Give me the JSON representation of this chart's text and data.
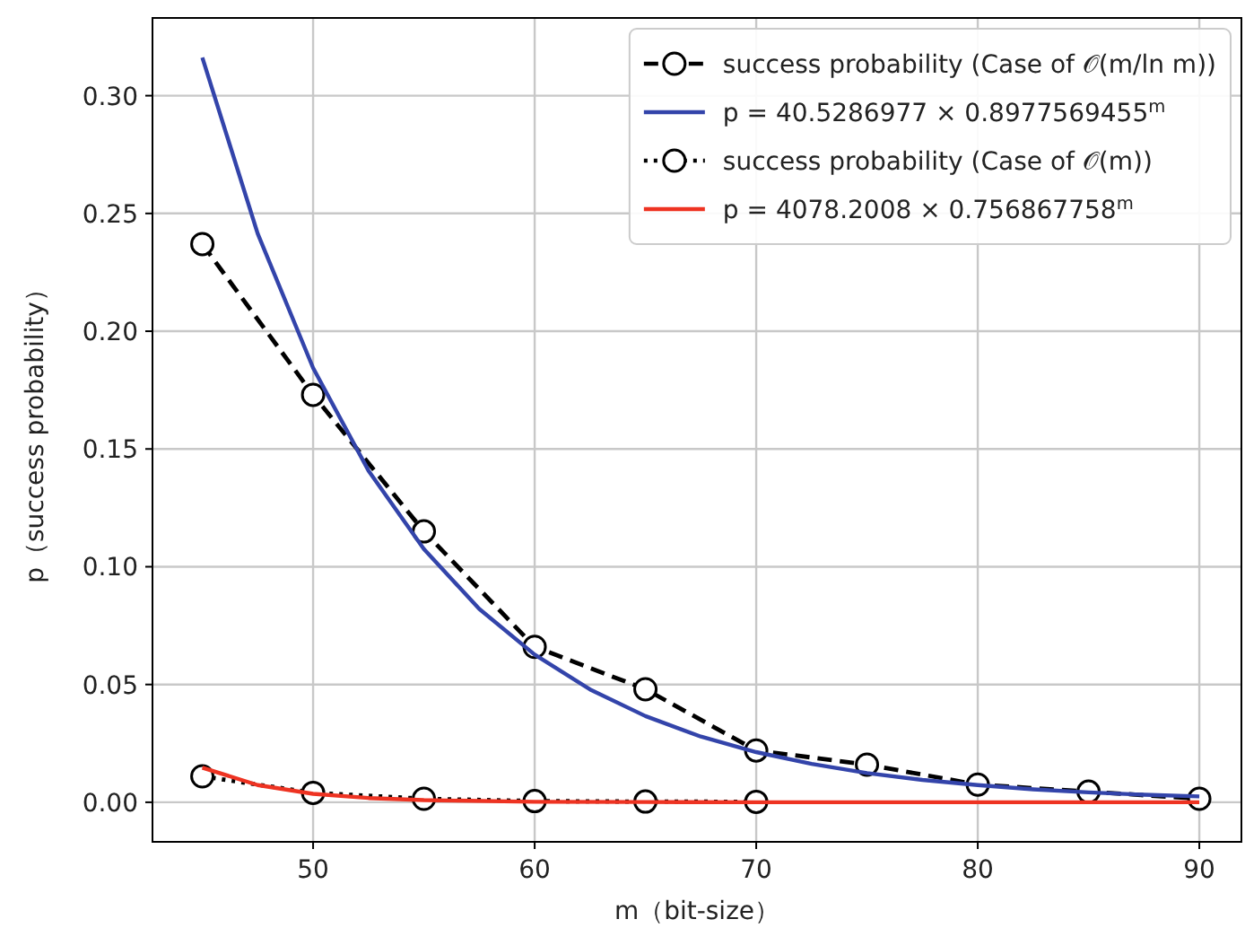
{
  "chart_data": {
    "type": "line",
    "xlabel": "m（bit-size）",
    "ylabel": "p（success probability）",
    "xlim": [
      42.75,
      91.9
    ],
    "ylim": [
      -0.0168,
      0.333
    ],
    "xticks": [
      50,
      60,
      70,
      80,
      90
    ],
    "yticks": [
      {
        "value": 0,
        "label": "0.00"
      },
      {
        "value": 0.05,
        "label": "0.05"
      },
      {
        "value": 0.1,
        "label": "0.10"
      },
      {
        "value": 0.15,
        "label": "0.15"
      },
      {
        "value": 0.2,
        "label": "0.20"
      },
      {
        "value": 0.25,
        "label": "0.25"
      },
      {
        "value": 0.3,
        "label": "0.30"
      }
    ],
    "grid": true,
    "legend": "top right",
    "series": [
      {
        "name": "success probability (Case of 𝒪(m/ln m))",
        "color": "#000000",
        "line_style": "dashed",
        "marker": "circle",
        "x": [
          45,
          50,
          55,
          60,
          65,
          70,
          75,
          80,
          85,
          90
        ],
        "values": [
          0.237,
          0.173,
          0.115,
          0.066,
          0.048,
          0.022,
          0.016,
          0.0075,
          0.0045,
          0.0015
        ]
      },
      {
        "name": "p = 40.5286977 × 0.8977569455$^{m}$",
        "color": "#3344aa",
        "line_style": "solid",
        "marker": "none",
        "x": [
          45,
          47.5,
          50,
          52.5,
          55,
          57.5,
          60,
          62.5,
          65,
          67.5,
          70,
          72.5,
          75,
          77.5,
          80,
          82.5,
          85,
          87.5,
          90
        ],
        "values": [
          0.3162,
          0.2414,
          0.1844,
          0.1408,
          0.1075,
          0.0821,
          0.0627,
          0.0479,
          0.0366,
          0.0279,
          0.0213,
          0.0163,
          0.0124,
          0.0095,
          0.0073,
          0.0055,
          0.0042,
          0.0032,
          0.0025
        ]
      },
      {
        "name": "success probability (Case of 𝒪(m))",
        "color": "#000000",
        "line_style": "dotted",
        "marker": "circle",
        "x": [
          45,
          50,
          55,
          60,
          65,
          70
        ],
        "values": [
          0.011,
          0.004,
          0.0015,
          0.0005,
          0.0003,
          0.0002
        ]
      },
      {
        "name": "p = 4078.2008 × 0.756867758$^{m}$",
        "color": "#ee3322",
        "line_style": "solid",
        "marker": "none",
        "x": [
          45,
          47.5,
          50,
          52.5,
          55,
          60,
          65,
          70,
          80,
          90
        ],
        "values": [
          0.0147,
          0.0073,
          0.0036,
          0.0018,
          0.0009,
          0.0002,
          0.0001,
          0,
          0,
          0
        ]
      }
    ]
  }
}
